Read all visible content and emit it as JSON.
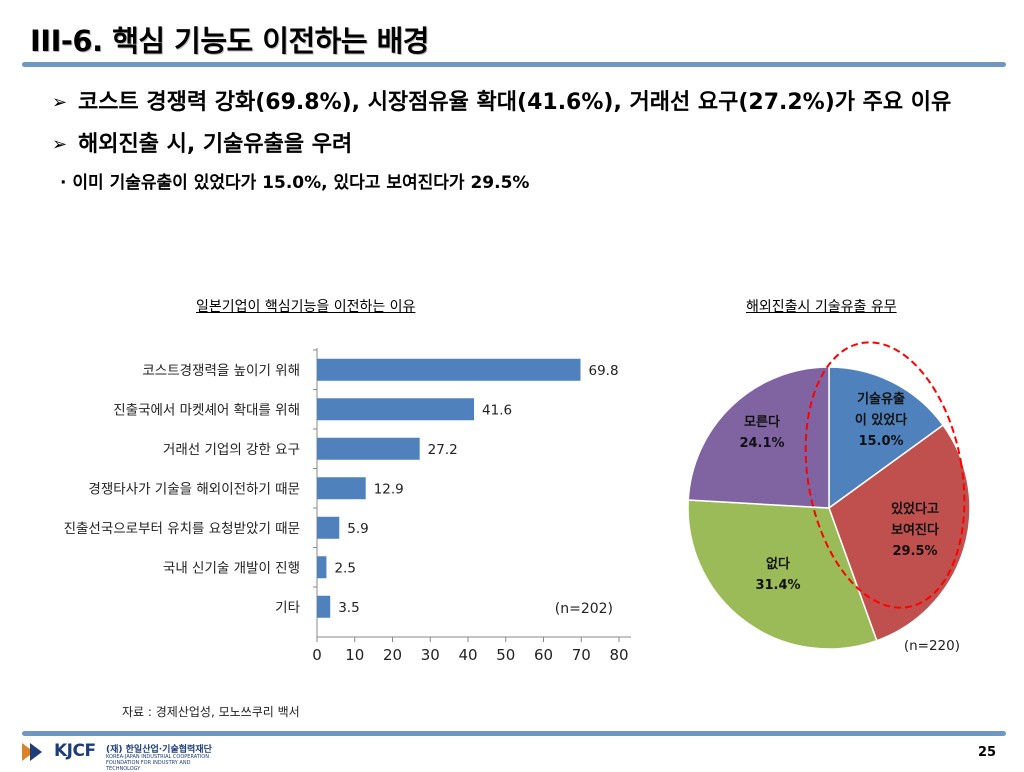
{
  "slide": {
    "title": "III-6. 핵심 기능도 이전하는 배경",
    "bullets": [
      "코스트 경쟁력 강화(69.8%), 시장점유율 확대(41.6%), 거래선 요구(27.2%)가 주요 이유",
      "해외진출 시, 기술유출을 우려"
    ],
    "bullet_marker": "➢",
    "subnote": "· 이미 기술유출이 있었다가 15.0%, 있다고 보여진다가 29.5%",
    "source": "자료 : 경제산업성, 모노쓰쿠리 백서",
    "page_number": "25",
    "logo": {
      "brand": "KJCF",
      "org": "(재) 한일산업·기술협력재단",
      "org_en": "KOREA-JAPAN INDUSTRIAL COOPERATION FOUNDATION FOR INDUSTRY AND TECHNOLOGY"
    }
  },
  "chart_data": [
    {
      "type": "bar",
      "orientation": "horizontal",
      "title": "일본기업이 핵심기능을 이전하는 이유",
      "categories": [
        "코스트경쟁력을 높이기 위해",
        "진출국에서 마켓셰어 확대를 위해",
        "거래선 기업의 강한 요구",
        "경쟁타사가 기술을 해외이전하기 때문",
        "진출선국으로부터 유치를 요청받았기 때문",
        "국내 신기술 개발이 진행",
        "기타"
      ],
      "values": [
        69.8,
        41.6,
        27.2,
        12.9,
        5.9,
        2.5,
        3.5
      ],
      "value_labels": [
        "69.8",
        "41.6",
        "27.2",
        "12.9",
        "5.9",
        "2.5",
        "3.5"
      ],
      "xlim": [
        0,
        80
      ],
      "xticks": [
        0,
        10,
        20,
        30,
        40,
        50,
        60,
        70,
        80
      ],
      "xtick_labels": [
        "0",
        "10",
        "20",
        "30",
        "40",
        "50",
        "60",
        "70",
        "80"
      ],
      "annotation": "(n=202)",
      "color": "#4f81bd"
    },
    {
      "type": "pie",
      "title": "해외진출시 기술유출 유무",
      "slices": [
        {
          "label_lines": [
            "기술유출",
            "이 있었다"
          ],
          "value": 15.0,
          "value_label": "15.0%",
          "color": "#4f81bd"
        },
        {
          "label_lines": [
            "있었다고",
            "보여진다"
          ],
          "value": 29.5,
          "value_label": "29.5%",
          "color": "#c0504d"
        },
        {
          "label_lines": [
            "없다"
          ],
          "value": 31.4,
          "value_label": "31.4%",
          "color": "#9bbb59"
        },
        {
          "label_lines": [
            "모른다"
          ],
          "value": 24.1,
          "value_label": "24.1%",
          "color": "#8064a2"
        }
      ],
      "annotation": "(n=220)",
      "highlight_color": "#ff0000"
    }
  ]
}
